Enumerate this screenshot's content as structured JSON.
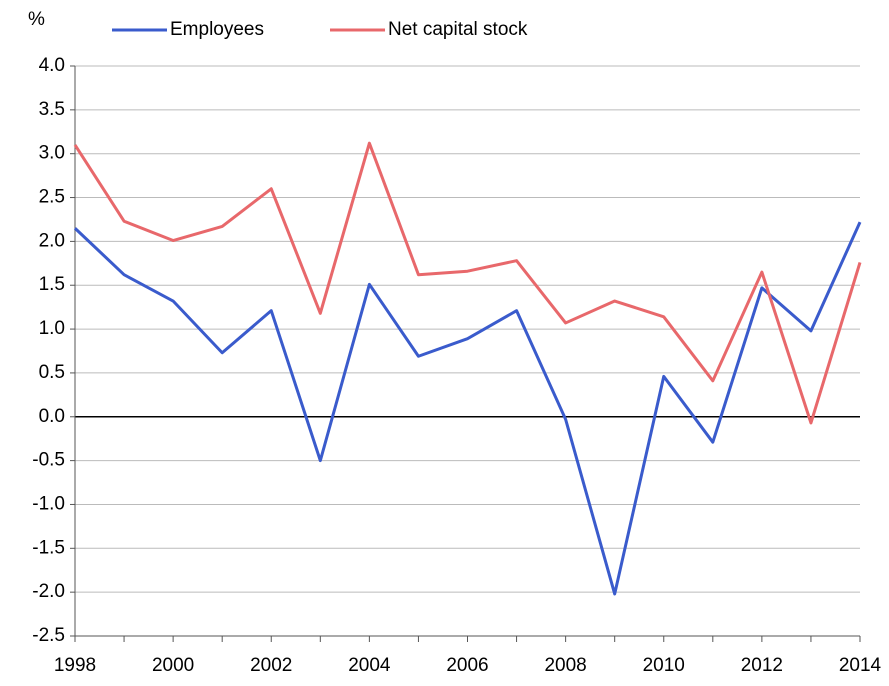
{
  "chart_data": {
    "type": "line",
    "y_unit": "%",
    "categories": [
      "1998",
      null,
      "2000",
      null,
      "2002",
      null,
      "2004",
      null,
      "2006",
      null,
      "2008",
      null,
      "2010",
      null,
      "2012",
      null,
      "2014"
    ],
    "series": [
      {
        "name": "Employees",
        "color": "#3a5bcc",
        "values": [
          2.15,
          1.62,
          1.32,
          0.73,
          1.21,
          -0.5,
          1.51,
          0.69,
          0.89,
          1.21,
          -0.03,
          -2.02,
          0.46,
          -0.29,
          1.47,
          0.98,
          2.22
        ]
      },
      {
        "name": "Net capital stock",
        "color": "#e8686b",
        "values": [
          3.1,
          2.23,
          2.01,
          2.17,
          2.6,
          1.18,
          3.12,
          1.62,
          1.66,
          1.78,
          1.07,
          1.32,
          1.14,
          0.41,
          1.65,
          -0.07,
          1.76
        ]
      }
    ],
    "ylim": [
      -2.5,
      4
    ],
    "yticks": [
      {
        "value": 4,
        "label": "4.0"
      },
      3.5,
      {
        "value": 3,
        "label": "3.0"
      },
      2.5,
      {
        "value": 2,
        "label": "2.0"
      },
      1.5,
      {
        "value": 1,
        "label": "1.0"
      },
      0.5,
      {
        "value": 0,
        "label": "0.0"
      },
      -0.5,
      {
        "value": -1,
        "label": "-1.0"
      },
      -1.5,
      {
        "value": -2,
        "label": "-2.0"
      },
      -2.5
    ],
    "grid": true
  }
}
